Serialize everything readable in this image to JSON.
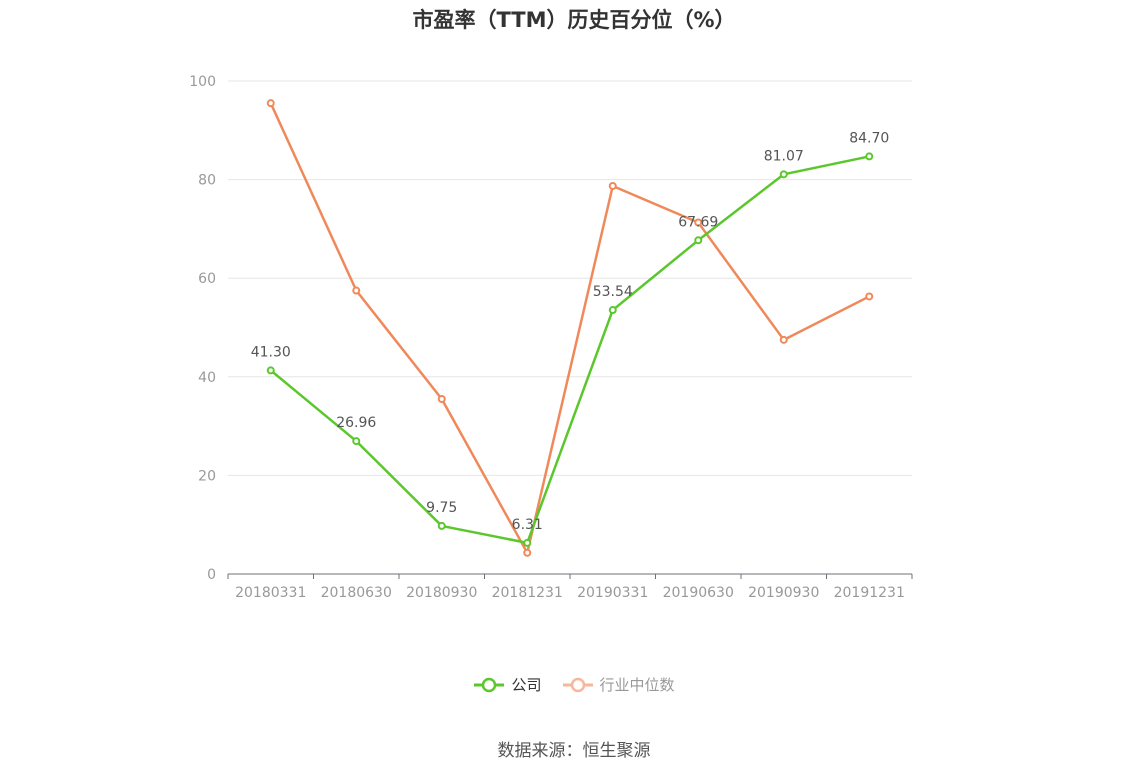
{
  "chart_data": {
    "type": "line",
    "title": "市盈率（TTM）历史百分位（%）",
    "categories": [
      "20180331",
      "20180630",
      "20180930",
      "20181231",
      "20190331",
      "20190630",
      "20190930",
      "20191231"
    ],
    "series": [
      {
        "name": "公司",
        "color": "#5bc72d",
        "values": [
          41.3,
          26.96,
          9.75,
          6.31,
          53.54,
          67.69,
          81.07,
          84.7
        ],
        "labels": [
          "41.30",
          "26.96",
          "9.75",
          "6.31",
          "53.54",
          "67.69",
          "81.07",
          "84.70"
        ]
      },
      {
        "name": "行业中位数",
        "color": "#f0895a",
        "legend_color": "#f7b79b",
        "values": [
          95.5,
          57.5,
          35.5,
          4.3,
          78.7,
          71.3,
          47.5,
          56.3
        ]
      }
    ],
    "ylim": [
      0,
      100
    ],
    "yticks": [
      "0",
      "20",
      "40",
      "60",
      "80",
      "100"
    ],
    "grid": true,
    "legend": "bottom-center"
  },
  "source": "数据来源：恒生聚源"
}
